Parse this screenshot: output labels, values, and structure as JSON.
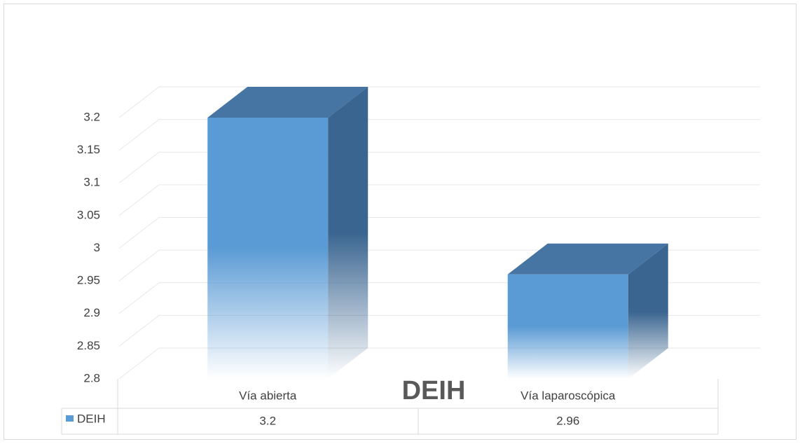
{
  "chart_data": {
    "type": "bar",
    "title": "DEIH",
    "categories": [
      "Vía abierta",
      "Vía laparoscópica"
    ],
    "series": [
      {
        "name": "DEIH",
        "color": "#5b9bd5",
        "values": [
          3.2,
          2.96
        ]
      }
    ],
    "ylim": [
      2.8,
      3.2
    ],
    "yticks": [
      2.8,
      2.85,
      2.9,
      2.95,
      3,
      3.05,
      3.1,
      3.15,
      3.2
    ],
    "grid": true
  }
}
